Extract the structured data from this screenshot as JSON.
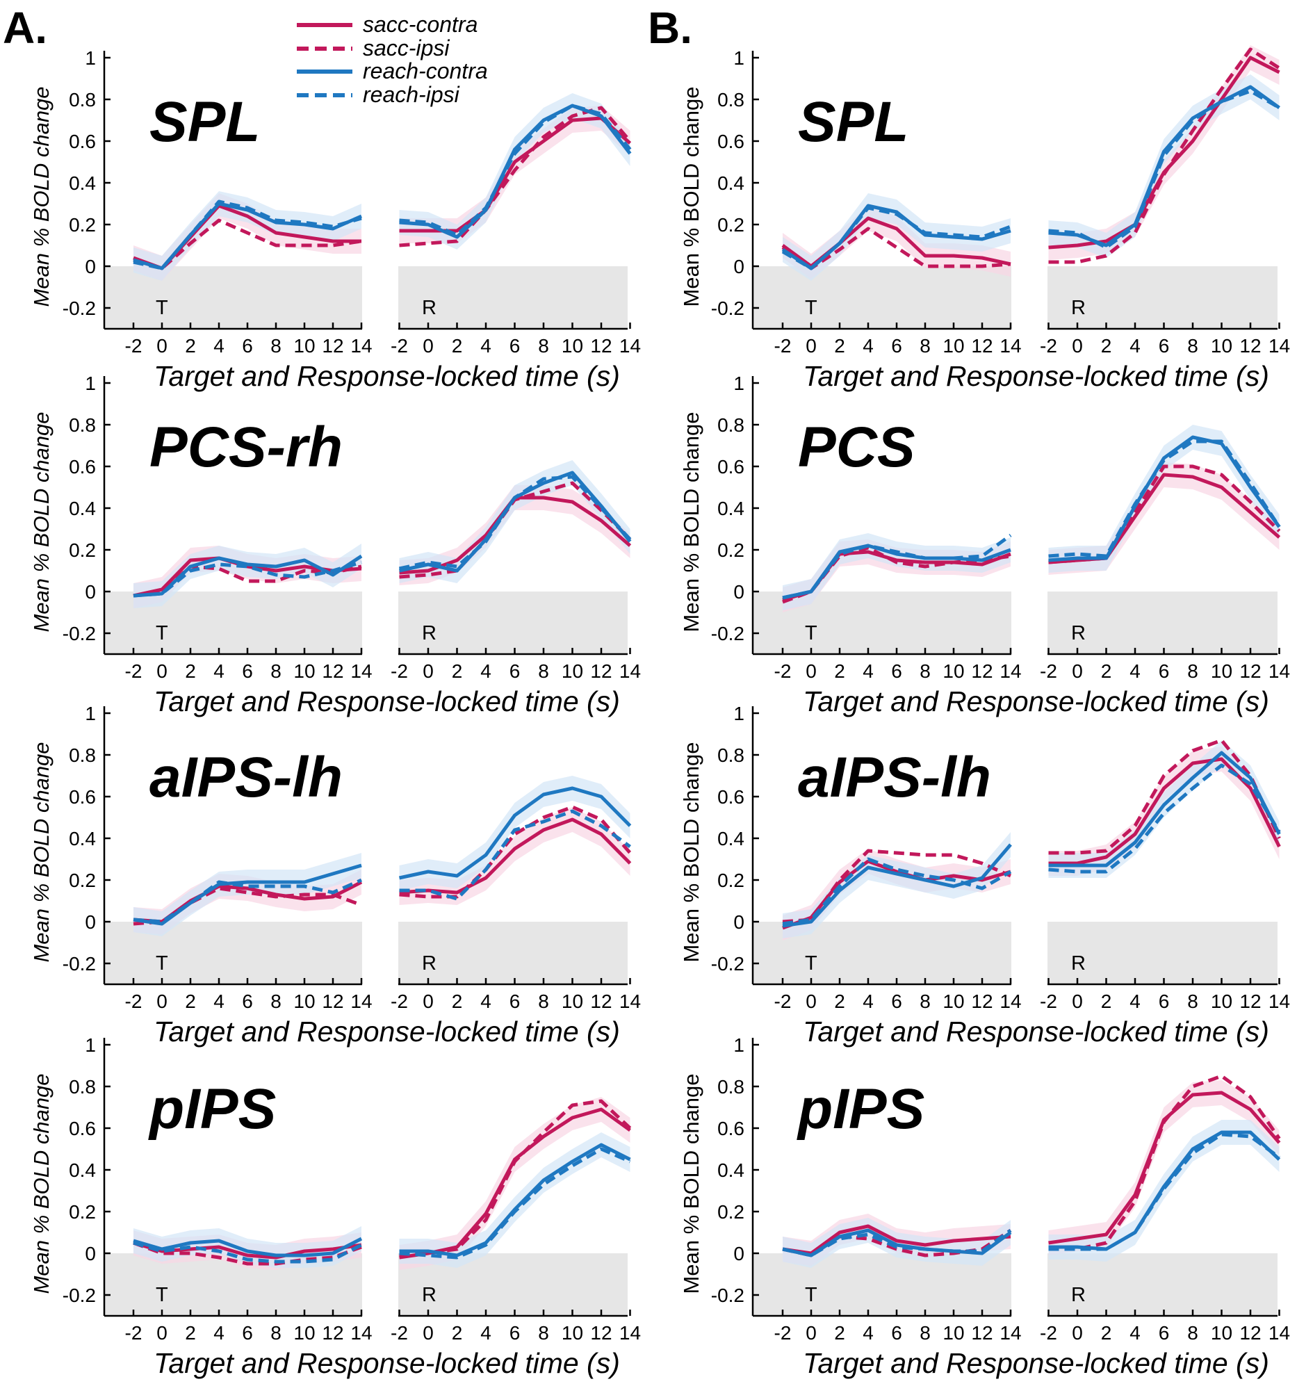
{
  "figure": {
    "panel_labels": [
      "A.",
      "B."
    ],
    "legend": [
      {
        "label": "sacc-contra",
        "color": "#c2185b",
        "dashed": false
      },
      {
        "label": "sacc-ipsi",
        "color": "#c2185b",
        "dashed": true
      },
      {
        "label": "reach-contra",
        "color": "#1f78c1",
        "dashed": false
      },
      {
        "label": "reach-ipsi",
        "color": "#1f78c1",
        "dashed": true
      }
    ],
    "colors": {
      "sacc": "#c2185b",
      "reach": "#1f78c1",
      "sacc_band": "#f8d5e4",
      "reach_band": "#d3e6f7",
      "baseline_fill": "#e6e6e6"
    },
    "ylabel_A": "Mean % BOLD change",
    "ylabel_B": "Mean % BOLD change",
    "xlabel": "Target and Response-locked time (s)",
    "yticks": [
      "1",
      "0.8",
      "0.6",
      "0.4",
      "0.2",
      "0",
      "-0.2"
    ],
    "xticks": [
      "-2",
      "0",
      "2",
      "4",
      "6",
      "8",
      "10",
      "12",
      "14"
    ],
    "event_labels": {
      "target": "T",
      "response": "R"
    }
  },
  "chart_data": [
    {
      "type": "line",
      "panel": "A",
      "title": "SPL",
      "x": [
        -2,
        0,
        2,
        4,
        6,
        8,
        10,
        12,
        14
      ],
      "ylim": [
        -0.3,
        1
      ],
      "xlim": [
        -4,
        14
      ],
      "target_locked": {
        "sacc-contra": [
          0.04,
          -0.01,
          0.14,
          0.29,
          0.24,
          0.16,
          0.14,
          0.12,
          0.12
        ],
        "sacc-ipsi": [
          0.03,
          -0.01,
          0.11,
          0.22,
          0.16,
          0.1,
          0.1,
          0.1,
          0.12
        ],
        "reach-contra": [
          0.03,
          -0.01,
          0.15,
          0.3,
          0.27,
          0.21,
          0.2,
          0.18,
          0.24
        ],
        "reach-ipsi": [
          0.02,
          -0.01,
          0.15,
          0.31,
          0.28,
          0.22,
          0.21,
          0.19,
          0.23
        ]
      },
      "response_locked": {
        "sacc-contra": [
          0.17,
          0.17,
          0.17,
          0.27,
          0.5,
          0.6,
          0.7,
          0.71,
          0.59
        ],
        "sacc-ipsi": [
          0.1,
          0.11,
          0.12,
          0.27,
          0.46,
          0.62,
          0.72,
          0.76,
          0.6
        ],
        "reach-contra": [
          0.21,
          0.2,
          0.14,
          0.27,
          0.56,
          0.7,
          0.77,
          0.72,
          0.54
        ],
        "reach-ipsi": [
          0.22,
          0.21,
          0.15,
          0.28,
          0.54,
          0.69,
          0.77,
          0.73,
          0.56
        ]
      }
    },
    {
      "type": "line",
      "panel": "A",
      "title": "PCS-rh",
      "x": [
        -2,
        0,
        2,
        4,
        6,
        8,
        10,
        12,
        14
      ],
      "ylim": [
        -0.3,
        1
      ],
      "xlim": [
        -4,
        14
      ],
      "target_locked": {
        "sacc-contra": [
          -0.02,
          0.01,
          0.15,
          0.16,
          0.12,
          0.1,
          0.12,
          0.1,
          0.11
        ],
        "sacc-ipsi": [
          -0.02,
          0,
          0.12,
          0.11,
          0.05,
          0.05,
          0.1,
          0.09,
          0.12
        ],
        "reach-contra": [
          -0.02,
          -0.01,
          0.12,
          0.16,
          0.13,
          0.12,
          0.15,
          0.08,
          0.17
        ],
        "reach-ipsi": [
          -0.02,
          -0.01,
          0.1,
          0.13,
          0.12,
          0.08,
          0.07,
          0.1,
          0.14
        ]
      },
      "response_locked": {
        "sacc-contra": [
          0.09,
          0.1,
          0.15,
          0.27,
          0.45,
          0.45,
          0.43,
          0.34,
          0.22
        ],
        "sacc-ipsi": [
          0.07,
          0.08,
          0.1,
          0.25,
          0.44,
          0.48,
          0.52,
          0.39,
          0.25
        ],
        "reach-contra": [
          0.1,
          0.13,
          0.1,
          0.25,
          0.45,
          0.52,
          0.57,
          0.41,
          0.24
        ],
        "reach-ipsi": [
          0.11,
          0.14,
          0.12,
          0.24,
          0.45,
          0.54,
          0.55,
          0.4,
          0.25
        ]
      }
    },
    {
      "type": "line",
      "panel": "A",
      "title": "aIPS-lh",
      "x": [
        -2,
        0,
        2,
        4,
        6,
        8,
        10,
        12,
        14
      ],
      "ylim": [
        -0.3,
        1
      ],
      "xlim": [
        -4,
        14
      ],
      "target_locked": {
        "sacc-contra": [
          0.01,
          0,
          0.1,
          0.17,
          0.16,
          0.13,
          0.11,
          0.12,
          0.19
        ],
        "sacc-ipsi": [
          -0.01,
          0,
          0.09,
          0.16,
          0.14,
          0.12,
          0.13,
          0.13,
          0.08
        ],
        "reach-contra": [
          0.01,
          -0.01,
          0.09,
          0.18,
          0.19,
          0.19,
          0.19,
          0.23,
          0.27
        ],
        "reach-ipsi": [
          0.01,
          0,
          0.09,
          0.19,
          0.17,
          0.17,
          0.17,
          0.14,
          0.2
        ]
      },
      "response_locked": {
        "sacc-contra": [
          0.14,
          0.15,
          0.14,
          0.21,
          0.35,
          0.44,
          0.49,
          0.42,
          0.28
        ],
        "sacc-ipsi": [
          0.13,
          0.12,
          0.12,
          0.25,
          0.42,
          0.5,
          0.55,
          0.49,
          0.33
        ],
        "reach-contra": [
          0.21,
          0.24,
          0.22,
          0.32,
          0.51,
          0.61,
          0.64,
          0.6,
          0.46
        ],
        "reach-ipsi": [
          0.15,
          0.15,
          0.11,
          0.25,
          0.44,
          0.48,
          0.53,
          0.46,
          0.36
        ]
      }
    },
    {
      "type": "line",
      "panel": "A",
      "title": "pIPS",
      "x": [
        -2,
        0,
        2,
        4,
        6,
        8,
        10,
        12,
        14
      ],
      "ylim": [
        -0.3,
        1
      ],
      "xlim": [
        -4,
        14
      ],
      "target_locked": {
        "sacc-contra": [
          0.05,
          0.01,
          0.02,
          0.03,
          -0.01,
          -0.02,
          0.01,
          0.02,
          0.04
        ],
        "sacc-ipsi": [
          0.05,
          0,
          0,
          -0.02,
          -0.05,
          -0.05,
          -0.03,
          -0.02,
          0.03
        ],
        "reach-contra": [
          0.06,
          0.02,
          0.05,
          0.06,
          0.01,
          -0.01,
          -0.01,
          0,
          0.07
        ],
        "reach-ipsi": [
          0.05,
          0.01,
          0.03,
          0.01,
          -0.03,
          -0.04,
          -0.04,
          -0.03,
          0.04
        ]
      },
      "response_locked": {
        "sacc-contra": [
          -0.02,
          0,
          0.03,
          0.19,
          0.45,
          0.56,
          0.65,
          0.69,
          0.59
        ],
        "sacc-ipsi": [
          -0.01,
          0,
          0.02,
          0.16,
          0.44,
          0.58,
          0.71,
          0.73,
          0.6
        ],
        "reach-contra": [
          0.01,
          0.01,
          -0.01,
          0.05,
          0.21,
          0.35,
          0.44,
          0.52,
          0.45
        ],
        "reach-ipsi": [
          0,
          -0.01,
          -0.02,
          0.04,
          0.2,
          0.33,
          0.42,
          0.5,
          0.44
        ]
      }
    },
    {
      "type": "line",
      "panel": "B",
      "title": "SPL",
      "x": [
        -2,
        0,
        2,
        4,
        6,
        8,
        10,
        12,
        14
      ],
      "ylim": [
        -0.3,
        1
      ],
      "xlim": [
        -4,
        14
      ],
      "target_locked": {
        "sacc-contra": [
          0.1,
          0,
          0.11,
          0.23,
          0.18,
          0.05,
          0.05,
          0.04,
          0.01
        ],
        "sacc-ipsi": [
          0.09,
          -0.01,
          0.08,
          0.18,
          0.09,
          0,
          0,
          0,
          0.01
        ],
        "reach-contra": [
          0.08,
          -0.01,
          0.11,
          0.29,
          0.26,
          0.15,
          0.14,
          0.13,
          0.17
        ],
        "reach-ipsi": [
          0.07,
          -0.01,
          0.11,
          0.28,
          0.25,
          0.16,
          0.15,
          0.14,
          0.19
        ]
      },
      "response_locked": {
        "sacc-contra": [
          0.09,
          0.1,
          0.12,
          0.2,
          0.45,
          0.6,
          0.8,
          1.0,
          0.93
        ],
        "sacc-ipsi": [
          0.02,
          0.02,
          0.05,
          0.16,
          0.44,
          0.65,
          0.85,
          1.04,
          0.95
        ],
        "reach-contra": [
          0.16,
          0.15,
          0.1,
          0.2,
          0.55,
          0.71,
          0.79,
          0.86,
          0.76
        ],
        "reach-ipsi": [
          0.17,
          0.16,
          0.09,
          0.19,
          0.53,
          0.7,
          0.79,
          0.84,
          0.76
        ]
      }
    },
    {
      "type": "line",
      "panel": "B",
      "title": "PCS",
      "x": [
        -2,
        0,
        2,
        4,
        6,
        8,
        10,
        12,
        14
      ],
      "ylim": [
        -0.3,
        1
      ],
      "xlim": [
        -4,
        14
      ],
      "target_locked": {
        "sacc-contra": [
          -0.04,
          0,
          0.18,
          0.19,
          0.15,
          0.14,
          0.14,
          0.13,
          0.18
        ],
        "sacc-ipsi": [
          -0.05,
          0,
          0.17,
          0.21,
          0.14,
          0.12,
          0.14,
          0.15,
          0.17
        ],
        "reach-contra": [
          -0.03,
          0,
          0.19,
          0.22,
          0.18,
          0.16,
          0.16,
          0.15,
          0.2
        ],
        "reach-ipsi": [
          -0.03,
          0,
          0.18,
          0.22,
          0.19,
          0.16,
          0.16,
          0.17,
          0.27
        ]
      },
      "response_locked": {
        "sacc-contra": [
          0.14,
          0.15,
          0.16,
          0.36,
          0.56,
          0.55,
          0.5,
          0.38,
          0.26
        ],
        "sacc-ipsi": [
          0.14,
          0.15,
          0.16,
          0.38,
          0.6,
          0.6,
          0.56,
          0.43,
          0.29
        ],
        "reach-contra": [
          0.15,
          0.16,
          0.16,
          0.41,
          0.64,
          0.74,
          0.71,
          0.5,
          0.31
        ],
        "reach-ipsi": [
          0.17,
          0.18,
          0.17,
          0.42,
          0.63,
          0.72,
          0.72,
          0.52,
          0.31
        ]
      }
    },
    {
      "type": "line",
      "panel": "B",
      "title": "aIPS-lh",
      "x": [
        -2,
        0,
        2,
        4,
        6,
        8,
        10,
        12,
        14
      ],
      "ylim": [
        -0.3,
        1
      ],
      "xlim": [
        -4,
        14
      ],
      "target_locked": {
        "sacc-contra": [
          -0.03,
          0.02,
          0.19,
          0.29,
          0.24,
          0.2,
          0.22,
          0.2,
          0.24
        ],
        "sacc-ipsi": [
          0,
          0.01,
          0.2,
          0.34,
          0.33,
          0.32,
          0.32,
          0.28,
          0.22
        ],
        "reach-contra": [
          -0.02,
          0,
          0.15,
          0.26,
          0.23,
          0.2,
          0.17,
          0.21,
          0.37
        ],
        "reach-ipsi": [
          -0.01,
          0.01,
          0.17,
          0.3,
          0.25,
          0.22,
          0.2,
          0.16,
          0.24
        ]
      },
      "response_locked": {
        "sacc-contra": [
          0.28,
          0.28,
          0.31,
          0.42,
          0.64,
          0.76,
          0.78,
          0.64,
          0.36
        ],
        "sacc-ipsi": [
          0.33,
          0.33,
          0.34,
          0.46,
          0.7,
          0.82,
          0.87,
          0.7,
          0.4
        ],
        "reach-contra": [
          0.27,
          0.27,
          0.27,
          0.38,
          0.56,
          0.69,
          0.81,
          0.69,
          0.42
        ],
        "reach-ipsi": [
          0.25,
          0.24,
          0.24,
          0.35,
          0.52,
          0.64,
          0.75,
          0.66,
          0.43
        ]
      }
    },
    {
      "type": "line",
      "panel": "B",
      "title": "pIPS",
      "x": [
        -2,
        0,
        2,
        4,
        6,
        8,
        10,
        12,
        14
      ],
      "ylim": [
        -0.3,
        1
      ],
      "xlim": [
        -4,
        14
      ],
      "target_locked": {
        "sacc-contra": [
          0.02,
          0,
          0.1,
          0.13,
          0.06,
          0.04,
          0.06,
          0.07,
          0.08
        ],
        "sacc-ipsi": [
          0.02,
          -0.01,
          0.08,
          0.07,
          0.02,
          -0.01,
          0,
          0.02,
          0.11
        ],
        "reach-contra": [
          0.02,
          -0.01,
          0.08,
          0.11,
          0.04,
          0.02,
          0.01,
          0,
          0.1
        ],
        "reach-ipsi": [
          0.02,
          -0.01,
          0.07,
          0.09,
          0.03,
          0.02,
          0.01,
          0.01,
          0.11
        ]
      },
      "response_locked": {
        "sacc-contra": [
          0.05,
          0.07,
          0.09,
          0.28,
          0.64,
          0.76,
          0.77,
          0.69,
          0.53
        ],
        "sacc-ipsi": [
          0.02,
          0.02,
          0.05,
          0.25,
          0.63,
          0.8,
          0.85,
          0.75,
          0.55
        ],
        "reach-contra": [
          0.03,
          0.03,
          0.02,
          0.1,
          0.32,
          0.5,
          0.58,
          0.58,
          0.45
        ],
        "reach-ipsi": [
          0.02,
          0.02,
          0.02,
          0.1,
          0.31,
          0.48,
          0.57,
          0.56,
          0.46
        ]
      }
    }
  ]
}
